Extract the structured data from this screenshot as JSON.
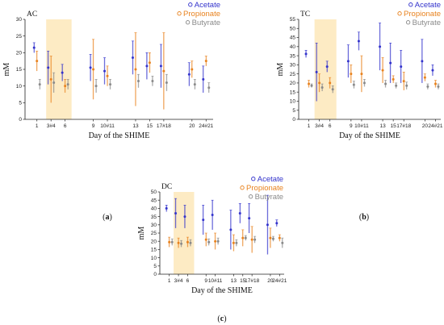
{
  "figure": {
    "captions": [
      "a",
      "b",
      "c"
    ]
  },
  "colors": {
    "acetate": "#3333cc",
    "propionate": "#e8821e",
    "butyrate": "#8a8a8a",
    "treatment_band": "#fdebc4"
  },
  "chart_data": [
    {
      "type": "scatter",
      "title": "AC",
      "xlabel": "Day of the SHIME",
      "ylabel": "mM",
      "ylim": [
        0,
        30
      ],
      "yticks": [
        0,
        5,
        10,
        15,
        20,
        25,
        30
      ],
      "x": [
        "1",
        "3#4",
        "6",
        "9",
        "10#11",
        "13",
        "15",
        "17#18",
        "20",
        "24#21"
      ],
      "shaded_x_range": [
        "3#4",
        "6"
      ],
      "grid": false,
      "legend_position": "top-right",
      "series": [
        {
          "name": "Acetate",
          "color": "#3333cc",
          "values": [
            21.5,
            15.5,
            14.0,
            15.5,
            14.5,
            18.5,
            16.0,
            16.0,
            13.5,
            12.0
          ],
          "err": [
            1.5,
            5.0,
            2.5,
            4.0,
            4.0,
            5.0,
            4.0,
            6.5,
            3.5,
            4.0
          ]
        },
        {
          "name": "Propionate",
          "color": "#e8821e",
          "values": [
            17.5,
            12.0,
            10.0,
            15.0,
            13.0,
            15.0,
            17.0,
            14.5,
            15.0,
            17.5
          ],
          "err": [
            3.0,
            7.0,
            2.0,
            9.0,
            3.0,
            11.0,
            3.0,
            11.5,
            2.5,
            1.5
          ]
        },
        {
          "name": "Butyrate",
          "color": "#8a8a8a",
          "values": [
            10.5,
            11.0,
            10.5,
            10.0,
            10.5,
            11.5,
            11.5,
            11.0,
            10.5,
            9.5
          ],
          "err": [
            1.5,
            3.0,
            1.5,
            2.0,
            1.5,
            2.0,
            1.5,
            2.5,
            1.5,
            1.5
          ]
        }
      ]
    },
    {
      "type": "scatter",
      "title": "TC",
      "xlabel": "Day of the SHIME",
      "ylabel": "mM",
      "ylim": [
        0,
        55
      ],
      "yticks": [
        0,
        5,
        10,
        15,
        20,
        25,
        30,
        35,
        40,
        45,
        50,
        55
      ],
      "x": [
        "1",
        "3#4",
        "6",
        "9",
        "10#11",
        "13",
        "15",
        "17#18",
        "20",
        "24#21"
      ],
      "shaded_x_range": [
        "3#4",
        "6"
      ],
      "grid": false,
      "legend_position": "top-right",
      "series": [
        {
          "name": "Acetate",
          "color": "#3333cc",
          "values": [
            36.0,
            26.0,
            29.0,
            32.0,
            43.0,
            40.0,
            31.0,
            29.0,
            32.0,
            27.0
          ],
          "err": [
            2.0,
            16.0,
            3.0,
            9.0,
            5.0,
            13.0,
            11.0,
            9.0,
            12.0,
            3.0
          ]
        },
        {
          "name": "Propionate",
          "color": "#e8821e",
          "values": [
            19.5,
            20.0,
            20.0,
            25.0,
            25.0,
            27.0,
            22.0,
            21.0,
            23.0,
            19.5
          ],
          "err": [
            2.0,
            5.0,
            3.0,
            5.0,
            10.0,
            7.0,
            2.0,
            5.0,
            2.0,
            2.0
          ]
        },
        {
          "name": "Butyrate",
          "color": "#8a8a8a",
          "values": [
            18.5,
            17.5,
            16.5,
            19.0,
            20.0,
            19.5,
            18.5,
            18.5,
            18.0,
            18.0
          ],
          "err": [
            1.0,
            2.0,
            2.0,
            2.0,
            2.0,
            2.0,
            1.5,
            2.0,
            1.5,
            1.5
          ]
        }
      ]
    },
    {
      "type": "scatter",
      "title": "DC",
      "xlabel": "Day of the SHIME",
      "ylabel": "mM",
      "ylim": [
        0,
        50
      ],
      "yticks": [
        0,
        5,
        10,
        15,
        20,
        25,
        30,
        35,
        40,
        45,
        50
      ],
      "x": [
        "1",
        "3#4",
        "6",
        "9",
        "10#11",
        "13",
        "15",
        "17#18",
        "20",
        "24#21"
      ],
      "shaded_x_range": [
        "3#4",
        "6"
      ],
      "grid": false,
      "legend_position": "top-right",
      "series": [
        {
          "name": "Acetate",
          "color": "#3333cc",
          "values": [
            40.0,
            37.0,
            35.0,
            33.0,
            36.0,
            27.0,
            37.0,
            34.0,
            30.0,
            31.0
          ],
          "err": [
            2.0,
            9.0,
            7.0,
            9.0,
            9.0,
            12.0,
            6.0,
            9.0,
            18.0,
            2.0
          ]
        },
        {
          "name": "Propionate",
          "color": "#e8821e",
          "values": [
            19.5,
            19.0,
            19.5,
            21.0,
            20.0,
            19.0,
            22.0,
            21.0,
            22.0,
            22.0
          ],
          "err": [
            3.0,
            3.0,
            3.0,
            4.0,
            5.0,
            5.0,
            5.0,
            8.0,
            6.0,
            2.0
          ]
        },
        {
          "name": "Butyrate",
          "color": "#8a8a8a",
          "values": [
            19.5,
            18.5,
            19.0,
            19.5,
            20.0,
            19.0,
            22.0,
            21.0,
            21.5,
            19.0
          ],
          "err": [
            2.0,
            2.0,
            2.0,
            2.0,
            2.0,
            2.0,
            1.5,
            2.0,
            1.5,
            3.0
          ]
        }
      ]
    }
  ]
}
